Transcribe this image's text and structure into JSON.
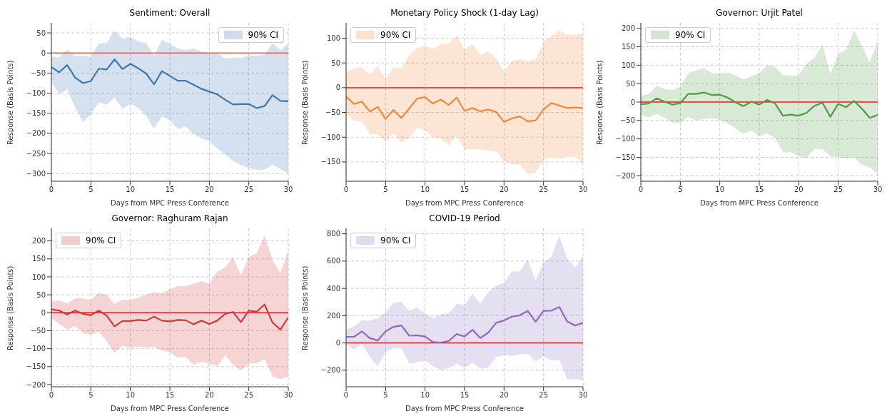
{
  "chart_data": [
    {
      "type": "line",
      "title": "Sentiment: Overall",
      "xlabel": "Days from MPC Press Conference",
      "ylabel": "Response (Basis Points)",
      "x": [
        0,
        1,
        2,
        3,
        4,
        5,
        6,
        7,
        8,
        9,
        10,
        11,
        12,
        13,
        14,
        15,
        16,
        17,
        18,
        19,
        20,
        21,
        22,
        23,
        24,
        25,
        26,
        27,
        28,
        29,
        30
      ],
      "xlim": [
        0,
        30
      ],
      "xticks": [
        0,
        5,
        10,
        15,
        20,
        25,
        30
      ],
      "ylim": [
        -319,
        75
      ],
      "yticks": [
        -300,
        -250,
        -200,
        -150,
        -100,
        -50,
        0,
        50
      ],
      "grid": true,
      "legend": "top right",
      "ref_lines": [
        {
          "axis": "y",
          "value": 0,
          "color": "#f0605a"
        }
      ],
      "series": [
        {
          "name": "90% CI",
          "color": "#3f78b1",
          "values": [
            -35,
            -48,
            -30,
            -61,
            -75,
            -70,
            -39,
            -41,
            -16,
            -40,
            -27,
            -38,
            -51,
            -78,
            -45,
            -57,
            -69,
            -69,
            -79,
            -89,
            -96,
            -103,
            -116,
            -128,
            -127,
            -127,
            -137,
            -132,
            -105,
            -119,
            -120
          ],
          "upper": [
            -9,
            -11,
            9,
            -8,
            -7,
            -9,
            23,
            25,
            56,
            36,
            40,
            29,
            25,
            -7,
            33,
            23,
            11,
            7,
            11,
            3,
            0,
            1,
            -14,
            -11,
            -13,
            -6,
            -7,
            -5,
            25,
            7,
            23
          ],
          "lower": [
            -72,
            -103,
            -90,
            -135,
            -172,
            -152,
            -123,
            -128,
            -111,
            -139,
            -127,
            -136,
            -157,
            -188,
            -158,
            -167,
            -189,
            -183,
            -201,
            -212,
            -219,
            -238,
            -252,
            -268,
            -279,
            -286,
            -291,
            -290,
            -278,
            -289,
            -300
          ]
        }
      ]
    },
    {
      "type": "line",
      "title": "Monetary Policy Shock (1-day Lag)",
      "xlabel": "Days from MPC Press Conference",
      "ylabel": "Response (Basis Points)",
      "x": [
        0,
        1,
        2,
        3,
        4,
        5,
        6,
        7,
        8,
        9,
        10,
        11,
        12,
        13,
        14,
        15,
        16,
        17,
        18,
        19,
        20,
        21,
        22,
        23,
        24,
        25,
        26,
        27,
        28,
        29,
        30
      ],
      "xlim": [
        0,
        30
      ],
      "xticks": [
        0,
        5,
        10,
        15,
        20,
        25,
        30
      ],
      "ylim": [
        -189,
        131
      ],
      "yticks": [
        -150,
        -100,
        -50,
        0,
        50,
        100
      ],
      "grid": true,
      "legend": "top left",
      "ref_lines": [
        {
          "axis": "y",
          "value": 0,
          "color": "#dd1c1c"
        }
      ],
      "series": [
        {
          "name": "90% CI",
          "color": "#f0883a",
          "values": [
            -18,
            -33,
            -28,
            -48,
            -39,
            -63,
            -45,
            -61,
            -42,
            -22,
            -19,
            -32,
            -24,
            -35,
            -20,
            -47,
            -41,
            -48,
            -44,
            -49,
            -69,
            -62,
            -58,
            -68,
            -66,
            -44,
            -31,
            -36,
            -41,
            -40,
            -41
          ],
          "upper": [
            32,
            39,
            41,
            26,
            45,
            18,
            41,
            39,
            66,
            80,
            85,
            78,
            88,
            88,
            106,
            77,
            88,
            65,
            74,
            59,
            33,
            54,
            58,
            54,
            56,
            93,
            104,
            116,
            107,
            107,
            109
          ],
          "lower": [
            -52,
            -67,
            -68,
            -94,
            -95,
            -109,
            -92,
            -110,
            -101,
            -80,
            -87,
            -100,
            -103,
            -117,
            -97,
            -125,
            -124,
            -124,
            -127,
            -129,
            -149,
            -155,
            -156,
            -174,
            -172,
            -146,
            -141,
            -144,
            -140,
            -140,
            -154
          ]
        }
      ]
    },
    {
      "type": "line",
      "title": "Governor: Urjit Patel",
      "xlabel": "Days from MPC Press Conference",
      "ylabel": "Response (Basis Points)",
      "x": [
        0,
        1,
        2,
        3,
        4,
        5,
        6,
        7,
        8,
        9,
        10,
        11,
        12,
        13,
        14,
        15,
        16,
        17,
        18,
        19,
        20,
        21,
        22,
        23,
        24,
        25,
        26,
        27,
        28,
        29,
        30
      ],
      "xlim": [
        0,
        30
      ],
      "xticks": [
        0,
        5,
        10,
        15,
        20,
        25,
        30
      ],
      "ylim": [
        -215,
        215
      ],
      "yticks": [
        -200,
        -150,
        -100,
        -50,
        0,
        50,
        100,
        150,
        200
      ],
      "grid": true,
      "legend": "top left",
      "ref_lines": [
        {
          "axis": "y",
          "value": 0,
          "color": "#f01c1c"
        }
      ],
      "series": [
        {
          "name": "90% CI",
          "color": "#4f9a45",
          "values": [
            -6,
            -4,
            10,
            1,
            -7,
            -3,
            22,
            22,
            26,
            19,
            20,
            12,
            -1,
            -11,
            1,
            -7,
            6,
            -4,
            -37,
            -34,
            -37,
            -29,
            -10,
            -2,
            -40,
            -5,
            -14,
            3,
            -18,
            -43,
            -35
          ],
          "upper": [
            16,
            22,
            43,
            36,
            32,
            42,
            78,
            86,
            93,
            78,
            78,
            80,
            72,
            61,
            70,
            78,
            100,
            95,
            73,
            71,
            73,
            104,
            121,
            156,
            75,
            132,
            141,
            195,
            152,
            108,
            163
          ],
          "lower": [
            -33,
            -42,
            -32,
            -43,
            -56,
            -56,
            -40,
            -50,
            -46,
            -44,
            -48,
            -58,
            -72,
            -86,
            -77,
            -93,
            -85,
            -98,
            -136,
            -136,
            -147,
            -151,
            -127,
            -128,
            -147,
            -149,
            -153,
            -149,
            -171,
            -177,
            -195
          ]
        }
      ]
    },
    {
      "type": "line",
      "title": "Governor: Raghuram Rajan",
      "xlabel": "Days from MPC Press Conference",
      "ylabel": "Response (Basis Points)",
      "x": [
        0,
        1,
        2,
        3,
        4,
        5,
        6,
        7,
        8,
        9,
        10,
        11,
        12,
        13,
        14,
        15,
        16,
        17,
        18,
        19,
        20,
        21,
        22,
        23,
        24,
        25,
        26,
        27,
        28,
        29,
        30
      ],
      "xlim": [
        0,
        30
      ],
      "xticks": [
        0,
        5,
        10,
        15,
        20,
        25,
        30
      ],
      "ylim": [
        -206,
        235
      ],
      "yticks": [
        -200,
        -150,
        -100,
        -50,
        0,
        50,
        100,
        150,
        200
      ],
      "grid": true,
      "legend": "top left",
      "ref_lines": [
        {
          "axis": "y",
          "value": 0,
          "color": "#f01c1c"
        }
      ],
      "series": [
        {
          "name": "90% CI",
          "color": "#cc3c3a",
          "values": [
            10,
            6,
            -5,
            6,
            -3,
            -7,
            6,
            -8,
            -38,
            -23,
            -23,
            -20,
            -22,
            -11,
            -22,
            -24,
            -20,
            -21,
            -32,
            -22,
            -31,
            -22,
            -3,
            2,
            -26,
            6,
            3,
            23,
            -27,
            -47,
            -13
          ],
          "upper": [
            31,
            35,
            26,
            40,
            40,
            36,
            55,
            50,
            25,
            36,
            36,
            42,
            51,
            57,
            54,
            65,
            74,
            74,
            81,
            88,
            80,
            115,
            126,
            155,
            105,
            155,
            166,
            215,
            147,
            110,
            174
          ],
          "lower": [
            -15,
            -31,
            -47,
            -36,
            -57,
            -61,
            -52,
            -79,
            -111,
            -92,
            -97,
            -95,
            -97,
            -95,
            -104,
            -111,
            -124,
            -123,
            -145,
            -137,
            -141,
            -149,
            -119,
            -144,
            -161,
            -141,
            -141,
            -129,
            -177,
            -185,
            -178
          ]
        }
      ]
    },
    {
      "type": "line",
      "title": "COVID-19 Period",
      "xlabel": "Days from MPC Press Conference",
      "ylabel": "Response (Basis Points)",
      "x": [
        0,
        1,
        2,
        3,
        4,
        5,
        6,
        7,
        8,
        9,
        10,
        11,
        12,
        13,
        14,
        15,
        16,
        17,
        18,
        19,
        20,
        21,
        22,
        23,
        24,
        25,
        26,
        27,
        28,
        29,
        30
      ],
      "xlim": [
        0,
        30
      ],
      "xticks": [
        0,
        5,
        10,
        15,
        20,
        25,
        30
      ],
      "ylim": [
        -321,
        840
      ],
      "yticks": [
        -200,
        0,
        200,
        400,
        600,
        800
      ],
      "grid": true,
      "legend": "top left",
      "ref_lines": [
        {
          "axis": "y",
          "value": 0,
          "color": "#f01c1c"
        }
      ],
      "series": [
        {
          "name": "90% CI",
          "color": "#8f6abd",
          "values": [
            45,
            45,
            85,
            35,
            18,
            85,
            118,
            128,
            53,
            56,
            47,
            7,
            3,
            15,
            65,
            47,
            97,
            36,
            75,
            148,
            165,
            193,
            203,
            235,
            155,
            235,
            237,
            263,
            157,
            128,
            147
          ],
          "upper": [
            97,
            121,
            165,
            164,
            180,
            225,
            293,
            301,
            233,
            259,
            213,
            182,
            211,
            218,
            288,
            278,
            360,
            289,
            370,
            420,
            440,
            523,
            523,
            613,
            458,
            593,
            632,
            786,
            620,
            553,
            640
          ],
          "lower": [
            -10,
            -48,
            -7,
            -101,
            -170,
            -66,
            -40,
            -38,
            -151,
            -141,
            -130,
            -170,
            -200,
            -185,
            -152,
            -184,
            -145,
            -190,
            -180,
            -105,
            -90,
            -95,
            -83,
            -81,
            -137,
            -98,
            -127,
            -125,
            -266,
            -266,
            -270
          ]
        }
      ]
    }
  ]
}
